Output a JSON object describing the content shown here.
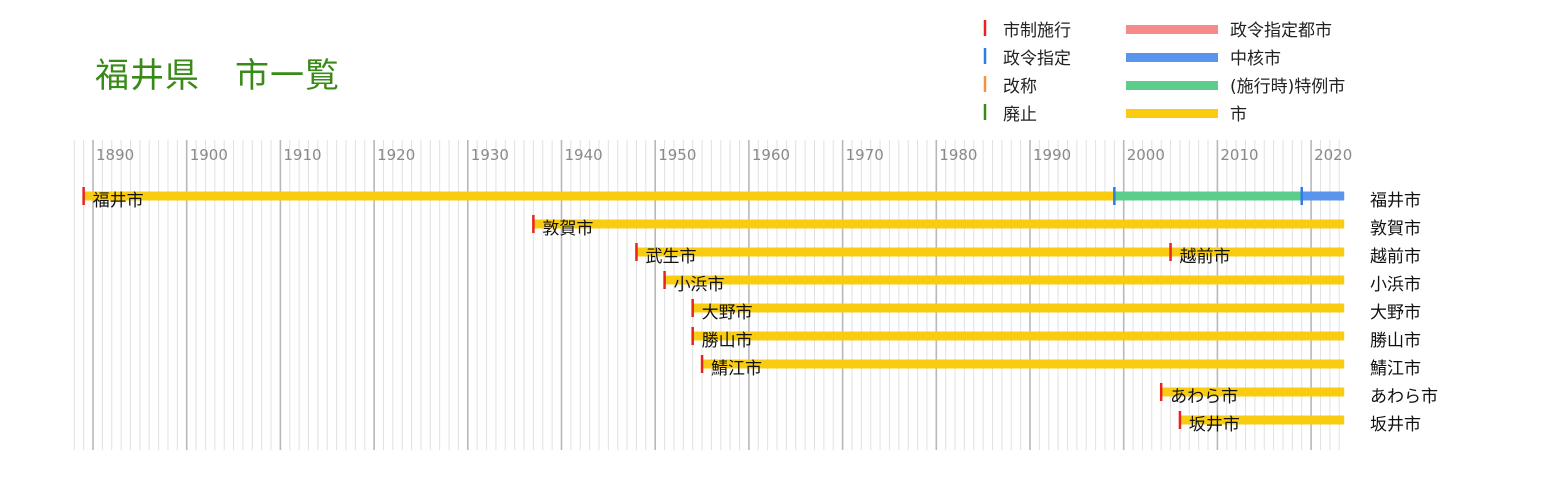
{
  "title": "福井県　市一覧",
  "legend": {
    "events": [
      {
        "label": "市制施行",
        "color": "#e8221e"
      },
      {
        "label": "政令指定",
        "color": "#2f7be8"
      },
      {
        "label": "改称",
        "color": "#f2943a"
      },
      {
        "label": "廃止",
        "color": "#3a8a1a"
      }
    ],
    "statuses": [
      {
        "label": "政令指定都市",
        "color": "#f58a8a"
      },
      {
        "label": "中核市",
        "color": "#5b94ef"
      },
      {
        "label": "(施行時)特例市",
        "color": "#5cce8c"
      },
      {
        "label": "市",
        "color": "#f9cc11"
      }
    ]
  },
  "chart_data": {
    "type": "bar",
    "subtype": "timeline",
    "xlim": [
      1888,
      2023
    ],
    "major_ticks": [
      1890,
      1900,
      1910,
      1920,
      1930,
      1940,
      1950,
      1960,
      1970,
      1980,
      1990,
      2000,
      2010,
      2020
    ],
    "minor_grid": "yearly",
    "cities": [
      {
        "name": "福井市",
        "segments": [
          {
            "start": 1889,
            "end": 1999,
            "status": "市"
          },
          {
            "start": 1999,
            "end": 2019,
            "status": "(施行時)特例市"
          },
          {
            "start": 2019,
            "end": 2023,
            "status": "中核市"
          }
        ],
        "events": [
          {
            "year": 1889,
            "type": "市制施行",
            "label": "福井市"
          },
          {
            "year": 1999,
            "type": "政令指定"
          },
          {
            "year": 2019,
            "type": "政令指定"
          }
        ]
      },
      {
        "name": "敦賀市",
        "segments": [
          {
            "start": 1937,
            "end": 2023,
            "status": "市"
          }
        ],
        "events": [
          {
            "year": 1937,
            "type": "市制施行",
            "label": "敦賀市"
          }
        ]
      },
      {
        "name": "越前市",
        "segments": [
          {
            "start": 1948,
            "end": 2023,
            "status": "市"
          }
        ],
        "events": [
          {
            "year": 1948,
            "type": "市制施行",
            "label": "武生市"
          },
          {
            "year": 2005,
            "type": "市制施行",
            "label": "越前市"
          }
        ]
      },
      {
        "name": "小浜市",
        "segments": [
          {
            "start": 1951,
            "end": 2023,
            "status": "市"
          }
        ],
        "events": [
          {
            "year": 1951,
            "type": "市制施行",
            "label": "小浜市"
          }
        ]
      },
      {
        "name": "大野市",
        "segments": [
          {
            "start": 1954,
            "end": 2023,
            "status": "市"
          }
        ],
        "events": [
          {
            "year": 1954,
            "type": "市制施行",
            "label": "大野市"
          }
        ]
      },
      {
        "name": "勝山市",
        "segments": [
          {
            "start": 1954,
            "end": 2023,
            "status": "市"
          }
        ],
        "events": [
          {
            "year": 1954,
            "type": "市制施行",
            "label": "勝山市"
          }
        ]
      },
      {
        "name": "鯖江市",
        "segments": [
          {
            "start": 1955,
            "end": 2023,
            "status": "市"
          }
        ],
        "events": [
          {
            "year": 1955,
            "type": "市制施行",
            "label": "鯖江市"
          }
        ]
      },
      {
        "name": "あわら市",
        "segments": [
          {
            "start": 2004,
            "end": 2023,
            "status": "市"
          }
        ],
        "events": [
          {
            "year": 2004,
            "type": "市制施行",
            "label": "あわら市"
          }
        ]
      },
      {
        "name": "坂井市",
        "segments": [
          {
            "start": 2006,
            "end": 2023,
            "status": "市"
          }
        ],
        "events": [
          {
            "year": 2006,
            "type": "市制施行",
            "label": "坂井市"
          }
        ]
      }
    ]
  }
}
